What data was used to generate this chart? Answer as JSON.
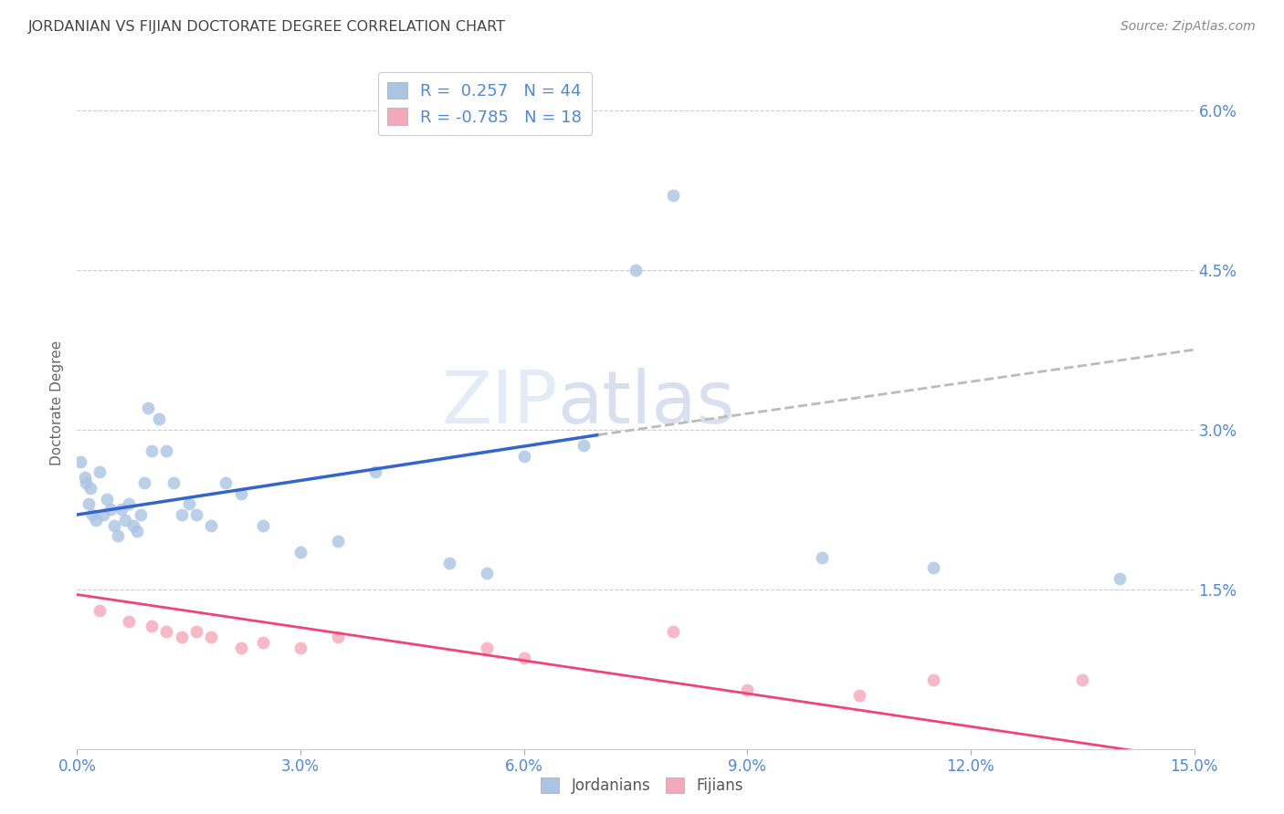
{
  "title": "JORDANIAN VS FIJIAN DOCTORATE DEGREE CORRELATION CHART",
  "source": "Source: ZipAtlas.com",
  "ylabel": "Doctorate Degree",
  "xlim": [
    0.0,
    15.0
  ],
  "ylim": [
    0.0,
    6.5
  ],
  "yticks": [
    1.5,
    3.0,
    4.5,
    6.0
  ],
  "ytick_labels": [
    "1.5%",
    "3.0%",
    "4.5%",
    "6.0%"
  ],
  "xtick_vals": [
    0.0,
    3.0,
    6.0,
    9.0,
    12.0,
    15.0
  ],
  "xtick_labels": [
    "0.0%",
    "3.0%",
    "6.0%",
    "9.0%",
    "12.0%",
    "15.0%"
  ],
  "legend_r_jordan": "0.257",
  "legend_n_jordan": "44",
  "legend_r_fijian": "-0.785",
  "legend_n_fijian": "18",
  "jordan_color": "#aac4e2",
  "fijian_color": "#f4a8bb",
  "jordan_line_color": "#3366cc",
  "fijian_line_color": "#ee4477",
  "jordan_dash_color": "#bbbbbb",
  "background_color": "#ffffff",
  "grid_color": "#cccccc",
  "title_color": "#444444",
  "axis_label_color": "#5588cc",
  "watermark_color": "#dce8f5",
  "jordan_x": [
    0.05,
    0.1,
    0.12,
    0.15,
    0.18,
    0.2,
    0.25,
    0.3,
    0.35,
    0.4,
    0.45,
    0.5,
    0.55,
    0.6,
    0.65,
    0.7,
    0.75,
    0.8,
    0.85,
    0.9,
    0.95,
    1.0,
    1.1,
    1.2,
    1.3,
    1.4,
    1.5,
    1.6,
    1.8,
    2.0,
    2.2,
    2.5,
    3.0,
    3.5,
    4.0,
    5.0,
    5.5,
    6.0,
    6.8,
    7.5,
    8.0,
    10.0,
    11.5,
    14.0
  ],
  "jordan_y": [
    2.7,
    2.55,
    2.5,
    2.3,
    2.45,
    2.2,
    2.15,
    2.6,
    2.2,
    2.35,
    2.25,
    2.1,
    2.0,
    2.25,
    2.15,
    2.3,
    2.1,
    2.05,
    2.2,
    2.5,
    3.2,
    2.8,
    3.1,
    2.8,
    2.5,
    2.2,
    2.3,
    2.2,
    2.1,
    2.5,
    2.4,
    2.1,
    1.85,
    1.95,
    2.6,
    1.75,
    1.65,
    2.75,
    2.85,
    4.5,
    5.2,
    1.8,
    1.7,
    1.6
  ],
  "fijian_x": [
    0.3,
    0.7,
    1.0,
    1.2,
    1.4,
    1.6,
    1.8,
    2.2,
    2.5,
    3.0,
    3.5,
    5.5,
    6.0,
    8.0,
    9.0,
    10.5,
    11.5,
    13.5
  ],
  "fijian_y": [
    1.3,
    1.2,
    1.15,
    1.1,
    1.05,
    1.1,
    1.05,
    0.95,
    1.0,
    0.95,
    1.05,
    0.95,
    0.85,
    1.1,
    0.55,
    0.5,
    0.65,
    0.65
  ],
  "jordan_trend_x0": 0.0,
  "jordan_trend_y0": 2.2,
  "jordan_trend_x1": 7.0,
  "jordan_trend_y1": 2.95,
  "jordan_dash_x0": 7.0,
  "jordan_dash_y0": 2.95,
  "jordan_dash_x1": 15.0,
  "jordan_dash_y1": 3.75,
  "fijian_trend_x0": 0.0,
  "fijian_trend_y0": 1.45,
  "fijian_trend_x1": 15.0,
  "fijian_trend_y1": -0.1
}
